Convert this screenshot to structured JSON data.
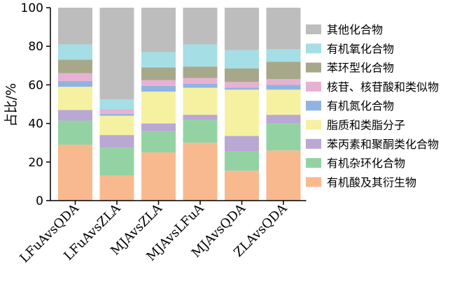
{
  "chart_data": {
    "type": "bar",
    "stacked": true,
    "ylabel": "占比/%",
    "ylim": [
      0,
      100
    ],
    "yticks": [
      0,
      20,
      40,
      60,
      80,
      100
    ],
    "categories": [
      "LFuAvsQDA",
      "LFuAvsZLA",
      "MJAvsZLA",
      "MJAvsLFuA",
      "MJAvsQDA",
      "ZLAvsQDA"
    ],
    "legend_position": "right",
    "series": [
      {
        "name": "有机酸及其衍生物",
        "color": "#F9B98F",
        "values": [
          29,
          13,
          25,
          30,
          15.5,
          26
        ]
      },
      {
        "name": "有机杂环化合物",
        "color": "#93D3A3",
        "values": [
          12.5,
          14.5,
          11,
          12,
          10,
          14
        ]
      },
      {
        "name": "苯丙素和聚酮类化合物",
        "color": "#B9A7D4",
        "values": [
          5.5,
          6.5,
          4,
          2.5,
          8,
          4.5
        ]
      },
      {
        "name": "脂质和类脂分子",
        "color": "#F6F1A1",
        "values": [
          12,
          10,
          16.5,
          14,
          24,
          13
        ]
      },
      {
        "name": "有机氮化合物",
        "color": "#8FB4E0",
        "values": [
          3,
          1,
          3,
          2,
          1,
          2.5
        ]
      },
      {
        "name": "核苷、核苷酸和类似物",
        "color": "#E7B1D4",
        "values": [
          4,
          2.5,
          3,
          3,
          3,
          3
        ]
      },
      {
        "name": "苯环型化合物",
        "color": "#A7A88A",
        "values": [
          7,
          0,
          6.5,
          6,
          7,
          9
        ]
      },
      {
        "name": "有机氧化合物",
        "color": "#A5DEE5",
        "values": [
          8,
          5,
          8,
          11.5,
          9.5,
          6.5
        ]
      },
      {
        "name": "其他化合物",
        "color": "#BDBDBD",
        "values": [
          19,
          47.5,
          23,
          19,
          22,
          21.5
        ]
      }
    ]
  }
}
